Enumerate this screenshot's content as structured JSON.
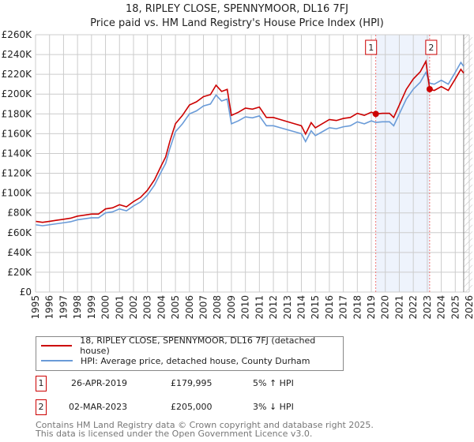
{
  "title": "18, RIPLEY CLOSE, SPENNYMOOR, DL16 7FJ",
  "subtitle": "Price paid vs. HM Land Registry's House Price Index (HPI)",
  "colors": {
    "property": "#cc0000",
    "hpi": "#6a9bd8",
    "shade": "#eef3fc"
  },
  "chart_data": {
    "type": "line",
    "title": "18, RIPLEY CLOSE, SPENNYMOOR, DL16 7FJ",
    "xlabel": "",
    "ylabel": "",
    "xlim": [
      1995,
      2026
    ],
    "ylim": [
      0,
      260000
    ],
    "grid": true,
    "yticks": [
      0,
      20000,
      40000,
      60000,
      80000,
      100000,
      120000,
      140000,
      160000,
      180000,
      200000,
      220000,
      240000,
      260000
    ],
    "ytick_labels": [
      "£0",
      "£20K",
      "£40K",
      "£60K",
      "£80K",
      "£100K",
      "£120K",
      "£140K",
      "£160K",
      "£180K",
      "£200K",
      "£220K",
      "£240K",
      "£260K"
    ],
    "xticks": [
      "1995",
      "1996",
      "1997",
      "1998",
      "1999",
      "2000",
      "2001",
      "2002",
      "2003",
      "2004",
      "2005",
      "2006",
      "2007",
      "2008",
      "2009",
      "2010",
      "2011",
      "2012",
      "2013",
      "2014",
      "2015",
      "2016",
      "2017",
      "2018",
      "2019",
      "2020",
      "2021",
      "2022",
      "2023",
      "2024",
      "2025",
      "2026"
    ],
    "x": [
      1995,
      1995.5,
      1996,
      1996.5,
      1997,
      1997.5,
      1998,
      1998.5,
      1999,
      1999.5,
      2000,
      2000.5,
      2001,
      2001.5,
      2002,
      2002.5,
      2003,
      2003.5,
      2004,
      2004.3,
      2004.6,
      2005,
      2005.5,
      2006,
      2006.5,
      2007,
      2007.5,
      2007.9,
      2008.3,
      2008.7,
      2009,
      2009.5,
      2010,
      2010.5,
      2011,
      2011.5,
      2012,
      2012.5,
      2013,
      2013.5,
      2014,
      2014.3,
      2014.7,
      2015,
      2015.5,
      2016,
      2016.5,
      2017,
      2017.5,
      2018,
      2018.5,
      2019,
      2019.32,
      2019.8,
      2020.3,
      2020.6,
      2021,
      2021.5,
      2022,
      2022.5,
      2022.9,
      2023.17,
      2023.5,
      2024,
      2024.5,
      2025,
      2025.4,
      2025.6
    ],
    "series": [
      {
        "name": "18, RIPLEY CLOSE, SPENNYMOOR, DL16 7FJ (detached house)",
        "color": "#cc0000",
        "values": [
          71.4,
          70.4,
          71.4,
          72.5,
          73.5,
          74.6,
          76.7,
          77.7,
          78.8,
          78.8,
          84,
          85.1,
          88.2,
          86.1,
          91.4,
          95.6,
          102.9,
          113.4,
          128.1,
          136.5,
          152.3,
          170.1,
          178.5,
          189,
          192.2,
          197.4,
          199.5,
          209,
          202.7,
          204.8,
          178.5,
          181.7,
          185.9,
          184.8,
          186.9,
          176.4,
          176.4,
          174.3,
          172.2,
          170.1,
          168,
          159.6,
          171.2,
          165.9,
          170.1,
          174.3,
          173.3,
          175.4,
          176.4,
          180.6,
          178.5,
          181.7,
          180,
          180.6,
          180.6,
          176.4,
          189,
          204.8,
          215.3,
          222.6,
          233.1,
          205,
          203.7,
          207.6,
          203.7,
          215.3,
          225,
          221.2
        ]
      },
      {
        "name": "HPI: Average price, detached house, County Durham",
        "color": "#6a9bd8",
        "values": [
          68,
          67,
          68,
          69,
          70,
          71,
          73,
          74,
          75,
          75,
          80,
          81,
          84,
          82,
          87,
          91,
          98,
          108,
          122,
          130,
          145,
          162,
          170,
          180,
          183,
          188,
          190,
          199,
          193,
          195,
          170,
          173,
          177,
          176,
          178,
          168,
          168,
          166,
          164,
          162,
          160,
          152,
          163,
          158,
          162,
          166,
          165,
          167,
          168,
          172,
          170,
          173,
          171.4,
          172,
          172,
          168,
          180,
          195,
          205,
          212,
          222,
          211,
          210,
          214,
          210,
          222,
          232,
          228
        ]
      }
    ],
    "value_unit": "thousand GBP",
    "sales": [
      {
        "label": "1",
        "x": 2019.32,
        "value": 179995
      },
      {
        "label": "2",
        "x": 2023.17,
        "value": 205000
      }
    ],
    "forecast_from": 2025.6,
    "legend_position": "below"
  },
  "legend": [
    "18, RIPLEY CLOSE, SPENNYMOOR, DL16 7FJ (detached house)",
    "HPI: Average price, detached house, County Durham"
  ],
  "sales_table": [
    {
      "num": "1",
      "date": "26-APR-2019",
      "price": "£179,995",
      "hpi": "5% ↑ HPI"
    },
    {
      "num": "2",
      "date": "02-MAR-2023",
      "price": "£205,000",
      "hpi": "3% ↓ HPI"
    }
  ],
  "footer": [
    "Contains HM Land Registry data © Crown copyright and database right 2025.",
    "This data is licensed under the Open Government Licence v3.0."
  ]
}
